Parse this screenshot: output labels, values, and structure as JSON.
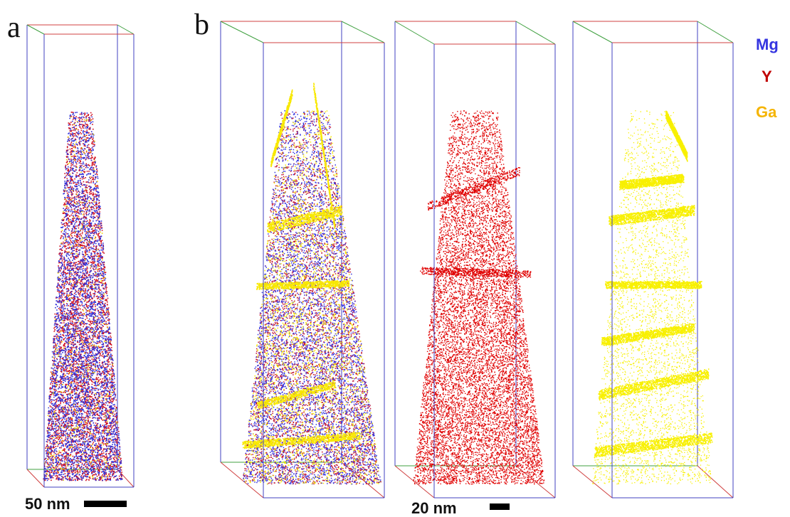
{
  "panels": [
    {
      "label": "a"
    },
    {
      "label": "b"
    }
  ],
  "legend": [
    {
      "name": "Mg",
      "color": "#3535e0"
    },
    {
      "name": "Y",
      "color": "#c00000"
    },
    {
      "name": "Ga",
      "color": "#f5b400"
    }
  ],
  "scale_bars": [
    {
      "label": "50 nm"
    },
    {
      "label": "20 nm"
    }
  ]
}
